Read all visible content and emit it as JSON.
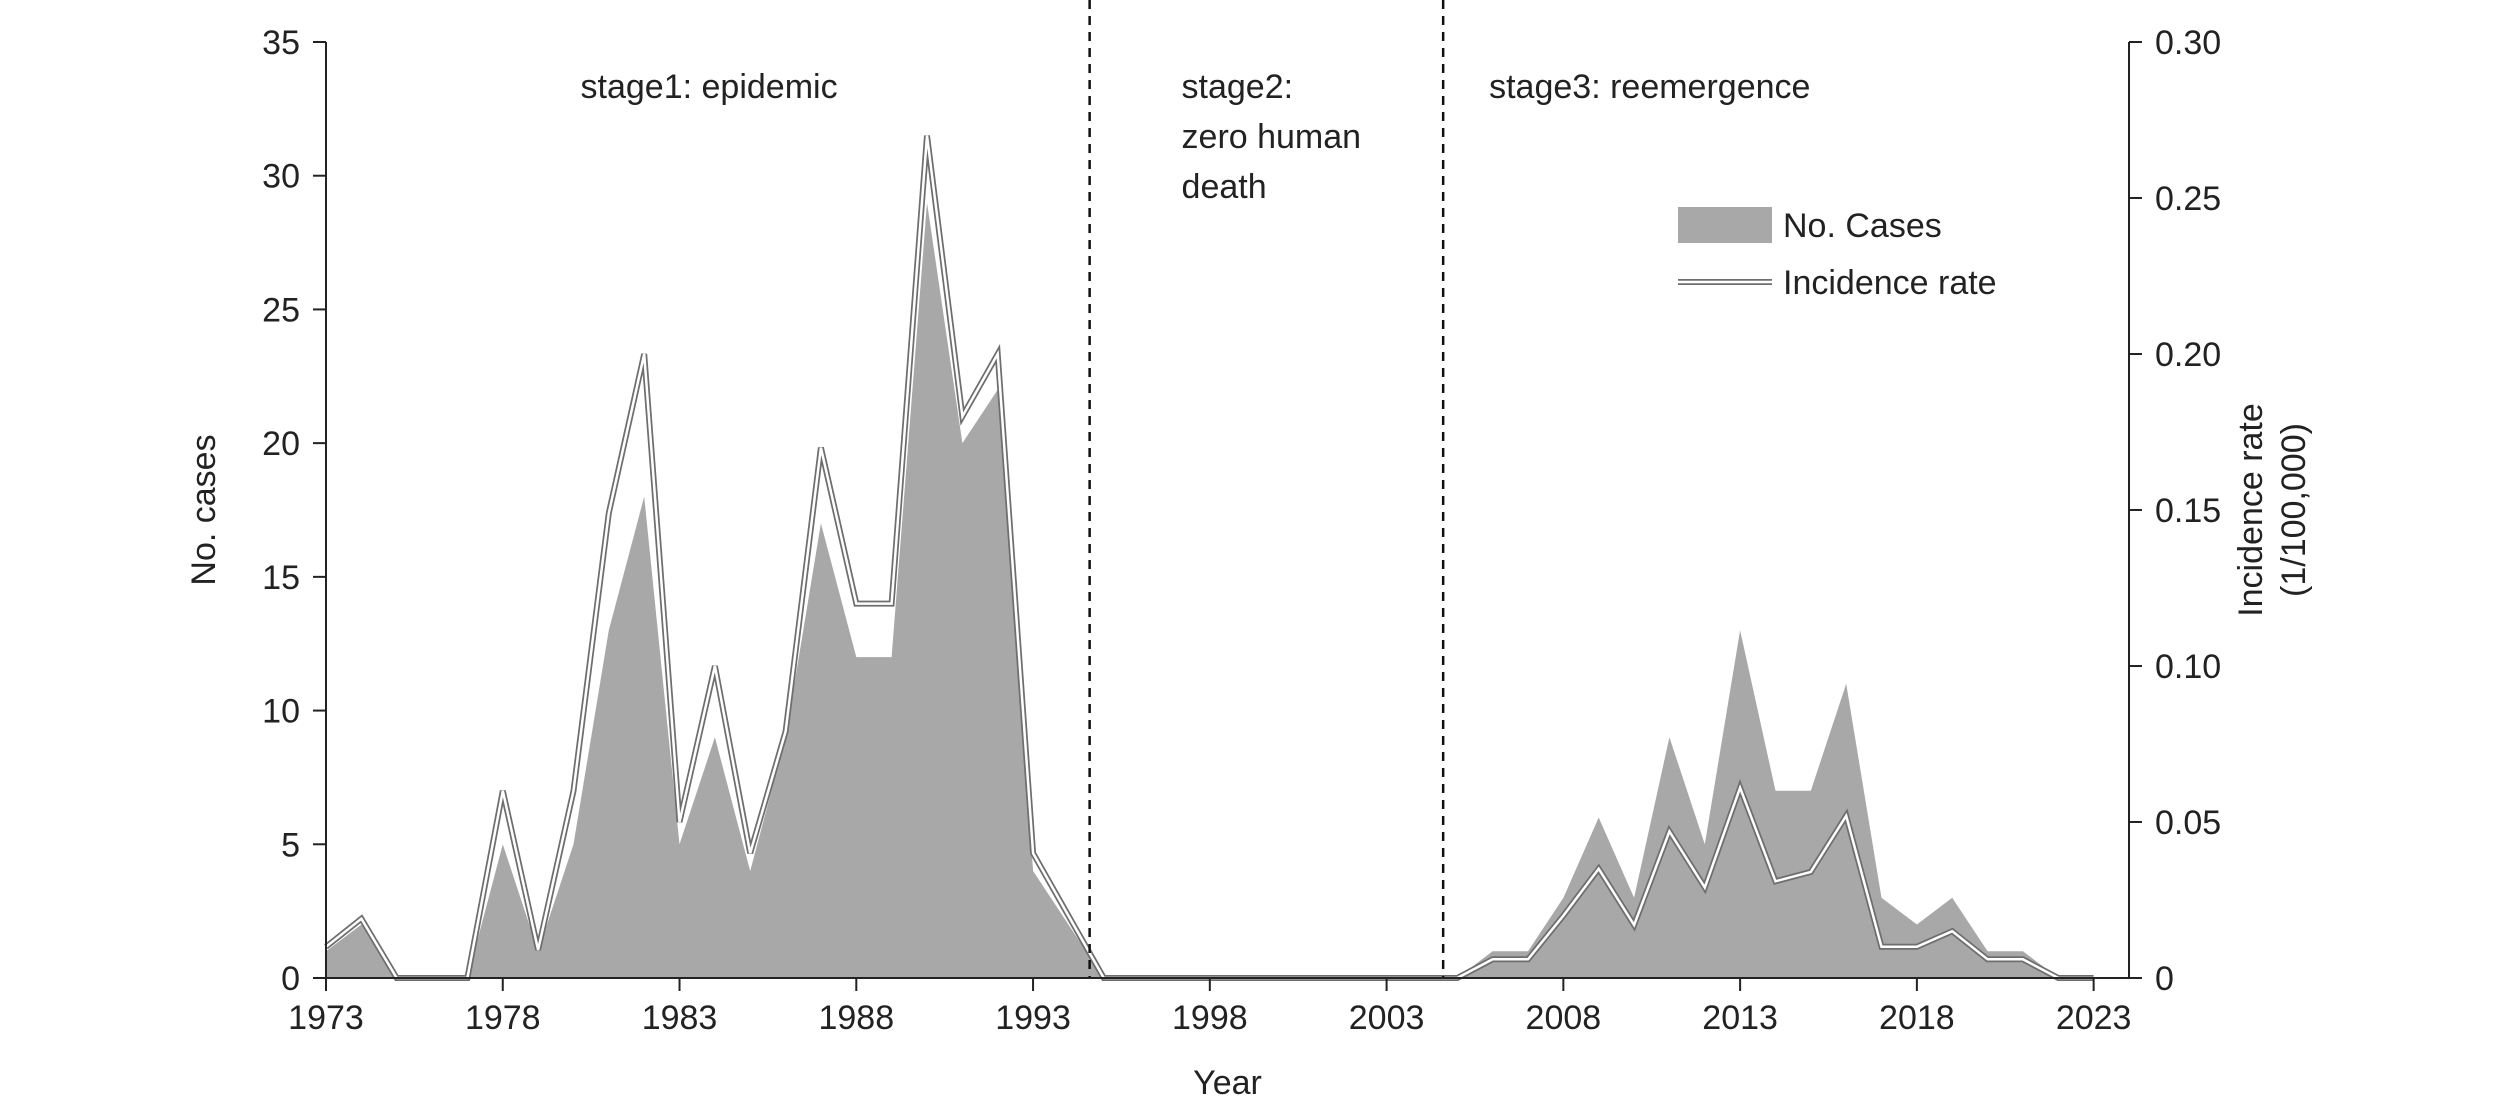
{
  "chart_data": {
    "type": "area",
    "title": "",
    "xlabel": "Year",
    "ylabel": "No. cases",
    "y2label_line1": "Incidence rate",
    "y2label_line2": "(1/100,000)",
    "xlim": [
      1973,
      2024
    ],
    "ylim": [
      0,
      35
    ],
    "y2lim": [
      0,
      0.3
    ],
    "x_ticks": [
      1973,
      1978,
      1983,
      1988,
      1993,
      1998,
      2003,
      2008,
      2013,
      2018,
      2023
    ],
    "y_ticks": [
      0,
      5,
      10,
      15,
      20,
      25,
      30,
      35
    ],
    "y2_ticks": [
      "0",
      "0.05",
      "0.10",
      "0.15",
      "0.20",
      "0.25",
      "0.30"
    ],
    "grid": false,
    "legend_position": "top-right",
    "colors": {
      "area": "#a8a8a8",
      "line": "#6e6e6e",
      "axis": "#222222",
      "divider": "#111111"
    },
    "series": [
      {
        "name": "No. Cases",
        "kind": "area",
        "axis": "left",
        "x": [
          1973,
          1974,
          1975,
          1976,
          1977,
          1978,
          1979,
          1980,
          1981,
          1982,
          1983,
          1984,
          1985,
          1986,
          1987,
          1988,
          1989,
          1990,
          1991,
          1992,
          1993,
          1994,
          1995,
          1996,
          1997,
          1998,
          1999,
          2000,
          2001,
          2002,
          2003,
          2004,
          2005,
          2006,
          2007,
          2008,
          2009,
          2010,
          2011,
          2012,
          2013,
          2014,
          2015,
          2016,
          2017,
          2018,
          2019,
          2020,
          2021,
          2022,
          2023
        ],
        "values": [
          1,
          2,
          0,
          0,
          0,
          5,
          1,
          5,
          13,
          18,
          5,
          9,
          4,
          9,
          17,
          12,
          12,
          29,
          20,
          22,
          4,
          2,
          0,
          0,
          0,
          0,
          0,
          0,
          0,
          0,
          0,
          0,
          0,
          1,
          1,
          3,
          6,
          3,
          9,
          5,
          13,
          7,
          7,
          11,
          3,
          2,
          3,
          1,
          1,
          0,
          0
        ]
      },
      {
        "name": "Incidence rate",
        "kind": "line",
        "axis": "right",
        "x": [
          1973,
          1974,
          1975,
          1976,
          1977,
          1978,
          1979,
          1980,
          1981,
          1982,
          1983,
          1984,
          1985,
          1986,
          1987,
          1988,
          1989,
          1990,
          1991,
          1992,
          1993,
          1994,
          1995,
          1996,
          1997,
          1998,
          1999,
          2000,
          2001,
          2002,
          2003,
          2004,
          2005,
          2006,
          2007,
          2008,
          2009,
          2010,
          2011,
          2012,
          2013,
          2014,
          2015,
          2016,
          2017,
          2018,
          2019,
          2020,
          2021,
          2022,
          2023
        ],
        "values": [
          0.01,
          0.019,
          0,
          0,
          0,
          0.06,
          0.009,
          0.06,
          0.149,
          0.2,
          0.05,
          0.1,
          0.04,
          0.079,
          0.17,
          0.12,
          0.12,
          0.27,
          0.18,
          0.2,
          0.04,
          0.02,
          0,
          0,
          0,
          0,
          0,
          0,
          0,
          0,
          0,
          0,
          0,
          0.006,
          0.006,
          0.02,
          0.035,
          0.017,
          0.047,
          0.029,
          0.061,
          0.031,
          0.034,
          0.052,
          0.01,
          0.01,
          0.015,
          0.006,
          0.006,
          0,
          0
        ]
      }
    ],
    "dividers": [
      1994.6,
      2004.6
    ],
    "annotations": [
      {
        "x": 1980.2,
        "lines": [
          "stage1: epidemic"
        ]
      },
      {
        "x": 1997.2,
        "lines": [
          "stage2:",
          "zero human",
          "death"
        ]
      },
      {
        "x": 2005.9,
        "lines": [
          "stage3: reemergence"
        ]
      }
    ]
  }
}
